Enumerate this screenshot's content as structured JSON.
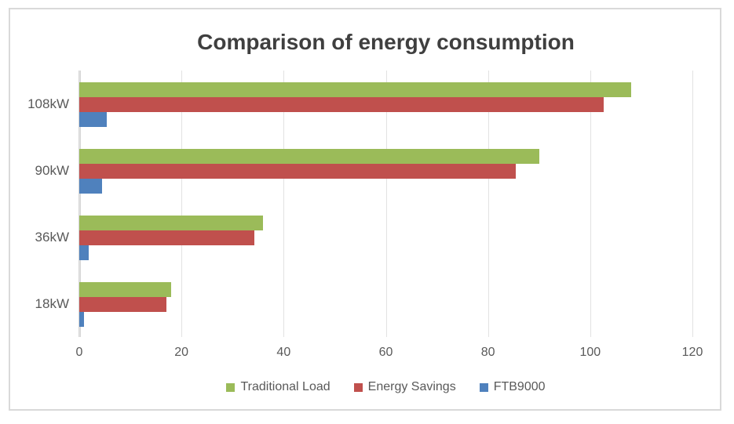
{
  "chart_data": {
    "type": "bar",
    "orientation": "horizontal",
    "title": "Comparison of energy consumption",
    "categories": [
      "108kW",
      "90kW",
      "36kW",
      "18kW"
    ],
    "series": [
      {
        "name": "Traditional Load",
        "color": "#9BBB59",
        "values": [
          108,
          90,
          36,
          18
        ]
      },
      {
        "name": "Energy Savings",
        "color": "#C0504D",
        "values": [
          102.6,
          85.5,
          34.2,
          17.1
        ]
      },
      {
        "name": "FTB9000",
        "color": "#4F81BD",
        "values": [
          5.4,
          4.5,
          1.8,
          0.9
        ]
      }
    ],
    "x_ticks": [
      0,
      20,
      40,
      60,
      80,
      100,
      120
    ],
    "xlim": [
      0,
      120
    ],
    "grid": true,
    "legend_position": "bottom",
    "colors": {
      "title_text": "#3F3F3F",
      "axis_text": "#595959",
      "gridline": "#E2E2E2",
      "axis_line": "#D6D6D6",
      "frame_border": "#D9D9D9"
    }
  }
}
